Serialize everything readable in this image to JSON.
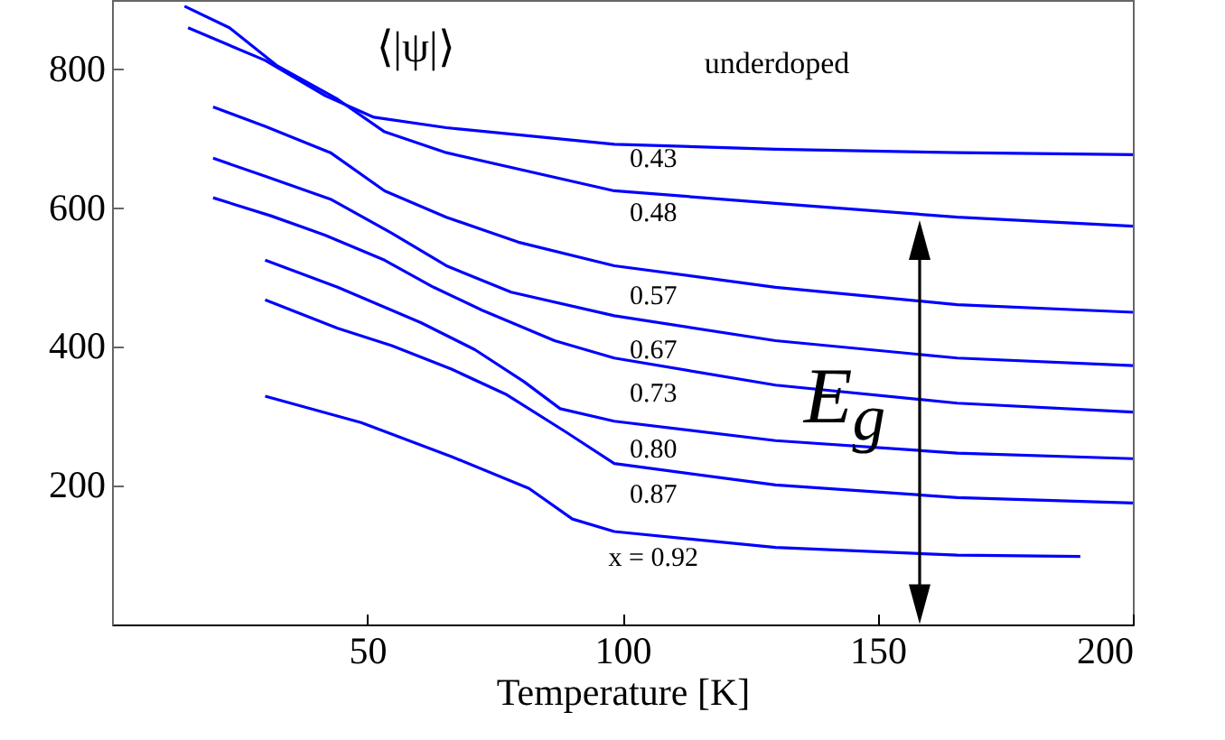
{
  "chart_data": {
    "type": "line",
    "xlabel": "Temperature [K]",
    "xlim": [
      0,
      200
    ],
    "ylim": [
      0,
      900
    ],
    "xticks": [
      50,
      100,
      150,
      200
    ],
    "yticks": [
      200,
      400,
      600,
      800
    ],
    "grid": false,
    "legend": false,
    "series": [
      {
        "name": "0.43",
        "color": "#0000ff",
        "x": [
          14.9,
          30,
          41.8,
          51.3,
          65.5,
          98.4,
          130,
          165.6,
          200
        ],
        "values": [
          860,
          813,
          762,
          731,
          716,
          692,
          685,
          680,
          677
        ]
      },
      {
        "name": "0.48",
        "color": "#0000ff",
        "x": [
          14.2,
          23,
          32.2,
          44.2,
          53.4,
          65.5,
          98.4,
          130,
          165.6,
          200
        ],
        "values": [
          891,
          860,
          806,
          757,
          710,
          680,
          625,
          607,
          587,
          574
        ]
      },
      {
        "name": "0.57",
        "color": "#0000ff",
        "x": [
          19.8,
          30,
          42.8,
          53.4,
          65.5,
          79.6,
          98.4,
          130,
          165.6,
          200
        ],
        "values": [
          746,
          718,
          680,
          625,
          587,
          551,
          517,
          486,
          461,
          450
        ]
      },
      {
        "name": "0.67",
        "color": "#0000ff",
        "x": [
          19.8,
          30,
          42.8,
          54.8,
          65.5,
          78.2,
          98.4,
          130,
          165.6,
          200
        ],
        "values": [
          672,
          646,
          613,
          564,
          517,
          479,
          445,
          409,
          384,
          373
        ]
      },
      {
        "name": "0.73",
        "color": "#0000ff",
        "x": [
          19.8,
          31.1,
          41.8,
          53.4,
          63,
          72.5,
          86.7,
          98.4,
          130,
          165.6,
          200
        ],
        "values": [
          615,
          589,
          561,
          525,
          486,
          453,
          409,
          384,
          345,
          319,
          306
        ]
      },
      {
        "name": "0.80",
        "color": "#0000ff",
        "x": [
          30,
          44.2,
          60.5,
          71.1,
          80.7,
          87.8,
          98.4,
          130,
          165.6,
          200
        ],
        "values": [
          525,
          486,
          435,
          396,
          350,
          311,
          293,
          265,
          247,
          239
        ]
      },
      {
        "name": "0.87",
        "color": "#0000ff",
        "x": [
          30,
          44.2,
          54.8,
          66.5,
          77.1,
          88.8,
          98.4,
          130,
          165.6,
          200
        ],
        "values": [
          468,
          427,
          402,
          368,
          332,
          278,
          232,
          201,
          183,
          175
        ]
      },
      {
        "name": "x = 0.92",
        "color": "#0000ff",
        "x": [
          30,
          48.8,
          66.5,
          81.7,
          90.2,
          98.4,
          130,
          165.6,
          189.7
        ],
        "values": [
          329,
          291,
          242,
          196,
          152,
          134,
          111,
          100,
          98
        ]
      }
    ],
    "annotations": [
      "⟨|ψ|⟩",
      "underdoped",
      {
        "text": "E$_{g}$",
        "x": 180,
        "y": 582
      }
    ]
  }
}
